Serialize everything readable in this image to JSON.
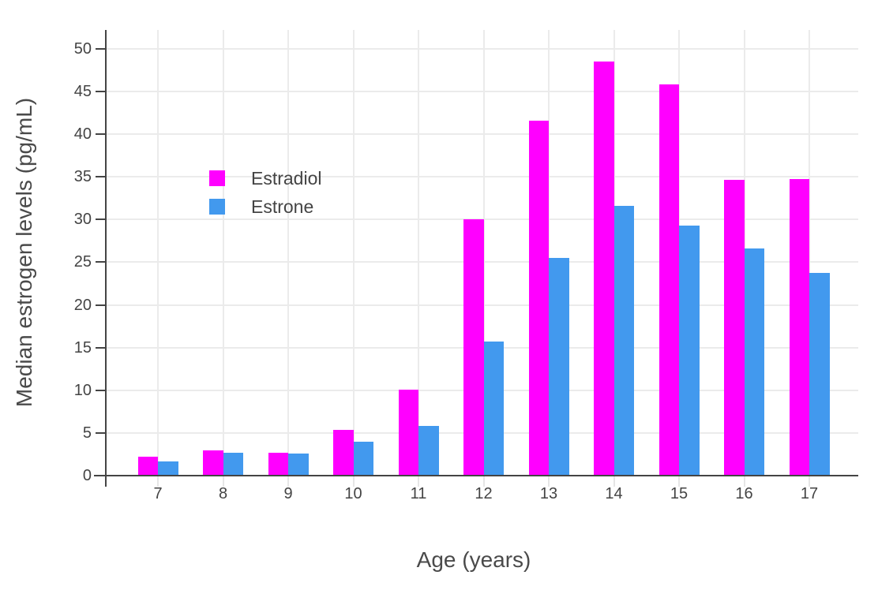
{
  "chart_data": {
    "type": "bar",
    "categories": [
      "7",
      "8",
      "9",
      "10",
      "11",
      "12",
      "13",
      "14",
      "15",
      "16",
      "17"
    ],
    "series": [
      {
        "name": "Estradiol",
        "color": "#ff00ff",
        "values": [
          2.2,
          3.0,
          2.7,
          5.4,
          10.1,
          30.0,
          41.6,
          48.5,
          45.8,
          34.6,
          34.7
        ]
      },
      {
        "name": "Estrone",
        "color": "#4299ee",
        "values": [
          1.7,
          2.7,
          2.6,
          4.0,
          5.8,
          15.7,
          25.5,
          31.6,
          29.3,
          26.6,
          23.7
        ]
      }
    ],
    "title": "",
    "xlabel": "Age (years)",
    "ylabel": "Median estrogen levels (pg/mL)",
    "ylim": [
      0,
      52.2
    ],
    "yticks": [
      "0",
      "5",
      "10",
      "15",
      "20",
      "25",
      "30",
      "35",
      "40",
      "45",
      "50"
    ],
    "grid": "on",
    "legend_position": "inside-upper-left"
  },
  "colors": {
    "background": "#ffffff",
    "text": "#444444",
    "axis": "#444444",
    "gridline": "#ebebeb",
    "minor_tick": "#e6e6e6",
    "estradiol": "#ff00ff",
    "estrone": "#4299ee"
  }
}
